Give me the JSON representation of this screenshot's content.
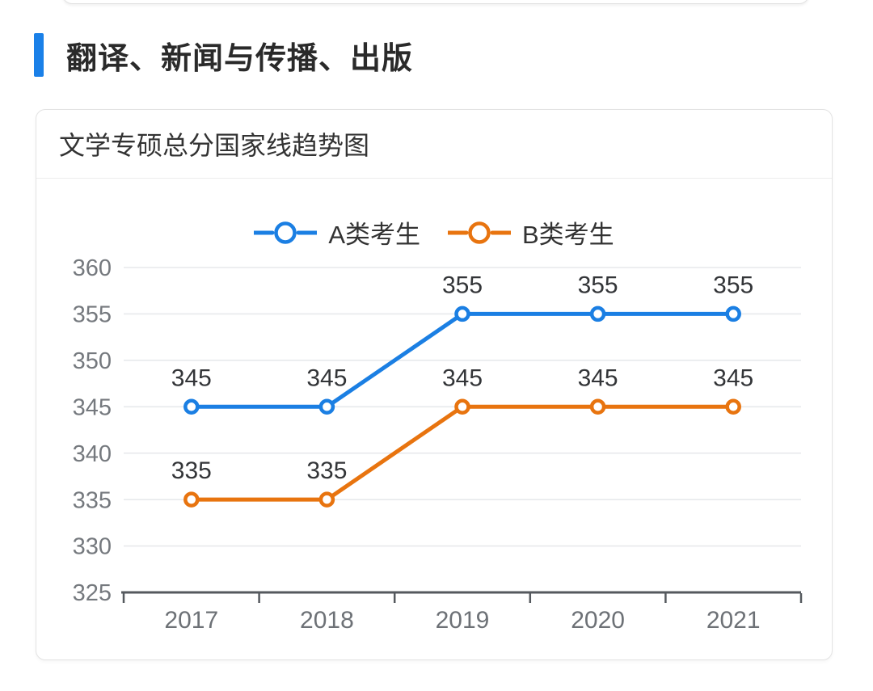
{
  "page": {
    "accent_color": "#1a80e8"
  },
  "header": {
    "title": "翻译、新闻与传播、出版"
  },
  "card": {
    "title": "文学专硕总分国家线趋势图"
  },
  "chart_data": {
    "type": "line",
    "title": "文学专硕总分国家线趋势图",
    "categories": [
      "2017",
      "2018",
      "2019",
      "2020",
      "2021"
    ],
    "series": [
      {
        "name": "A类考生",
        "color": "#1b7fe3",
        "values": [
          345,
          345,
          355,
          355,
          355
        ]
      },
      {
        "name": "B类考生",
        "color": "#e8740f",
        "values": [
          335,
          335,
          345,
          345,
          345
        ]
      }
    ],
    "ylim": [
      325,
      360
    ],
    "yticks": [
      325,
      330,
      335,
      340,
      345,
      350,
      355,
      360
    ],
    "xlabel": "",
    "ylabel": "",
    "grid": true,
    "data_labels": true,
    "legend_position": "top",
    "marker": "hollow-circle",
    "style": {
      "grid_color": "#e7e9ec",
      "axis_color": "#55595e",
      "ytick_label_color": "#75797e",
      "xtick_label_color": "#6d7176",
      "data_label_color": "#333538"
    }
  }
}
